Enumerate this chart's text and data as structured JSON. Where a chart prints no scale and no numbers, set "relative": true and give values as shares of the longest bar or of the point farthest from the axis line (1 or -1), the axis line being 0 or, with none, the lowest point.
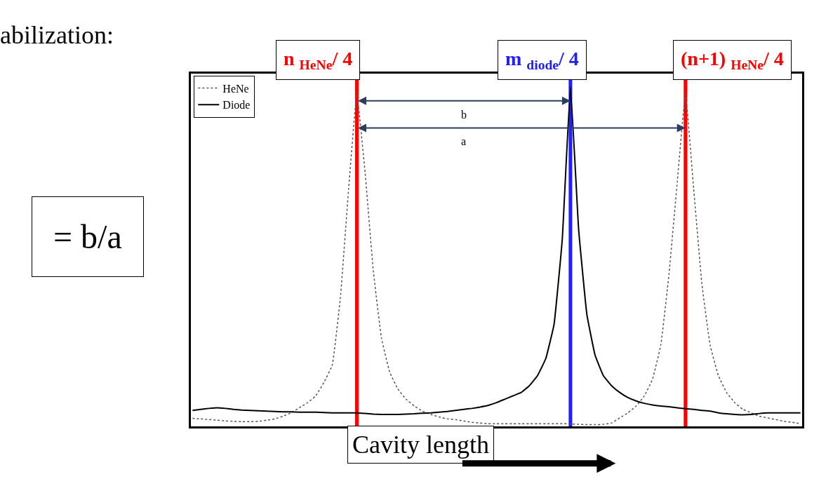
{
  "chart_data": {
    "type": "line",
    "relative": true,
    "xlabel": "Cavity length",
    "categories": [
      null,
      null,
      null,
      null,
      null,
      null,
      null,
      null,
      null,
      null,
      null,
      null,
      null,
      null,
      null,
      null,
      null,
      null,
      null,
      null,
      null,
      null,
      null,
      null,
      null,
      null,
      null,
      null,
      null,
      null,
      null,
      null,
      null,
      null,
      null,
      null,
      null,
      null,
      null,
      null,
      null,
      null,
      null,
      null,
      null,
      null,
      null,
      null,
      null,
      null,
      null,
      null,
      null,
      null,
      null,
      null,
      null,
      null,
      null,
      null,
      null,
      null,
      null,
      null,
      null,
      null,
      null,
      null,
      null,
      null,
      null,
      null,
      null,
      null,
      null
    ],
    "series": [
      {
        "name": "HeNe",
        "color": "#555555",
        "line_style": "dotted",
        "values": [
          0.024,
          0.022,
          0.02,
          0.018,
          0.016,
          0.015,
          0.014,
          0.014,
          0.015,
          0.018,
          0.022,
          0.03,
          0.04,
          0.055,
          0.07,
          0.09,
          0.13,
          0.18,
          0.38,
          0.7,
          0.98,
          0.75,
          0.46,
          0.26,
          0.16,
          0.11,
          0.08,
          0.06,
          0.045,
          0.035,
          0.028,
          0.022,
          0.02,
          0.016,
          0.012,
          0.01,
          0.008,
          0.008,
          0.008,
          0.008,
          0.008,
          0.008,
          0.008,
          0.008,
          0.008,
          0.008,
          0.007,
          0.006,
          0.005,
          0.005,
          0.006,
          0.01,
          0.025,
          0.04,
          0.06,
          0.09,
          0.14,
          0.24,
          0.45,
          0.72,
          0.98,
          0.7,
          0.42,
          0.24,
          0.15,
          0.1,
          0.07,
          0.05,
          0.04,
          0.03,
          0.025,
          0.02,
          0.015,
          0.012,
          0.008
        ]
      },
      {
        "name": "Diode",
        "color": "#000000",
        "line_style": "solid",
        "values": [
          0.047,
          0.05,
          0.053,
          0.055,
          0.053,
          0.05,
          0.048,
          0.047,
          0.046,
          0.045,
          0.044,
          0.043,
          0.043,
          0.042,
          0.042,
          0.042,
          0.041,
          0.04,
          0.04,
          0.04,
          0.04,
          0.038,
          0.036,
          0.035,
          0.035,
          0.035,
          0.036,
          0.037,
          0.039,
          0.04,
          0.042,
          0.044,
          0.047,
          0.05,
          0.053,
          0.057,
          0.062,
          0.07,
          0.08,
          0.09,
          0.1,
          0.12,
          0.15,
          0.2,
          0.3,
          0.55,
          1,
          0.58,
          0.33,
          0.21,
          0.15,
          0.12,
          0.1,
          0.085,
          0.075,
          0.068,
          0.063,
          0.06,
          0.058,
          0.055,
          0.052,
          0.05,
          0.047,
          0.045,
          0.04,
          0.037,
          0.035,
          0.034,
          0.035,
          0.038,
          0.04,
          0.04,
          0.04,
          0.04,
          0.04
        ]
      }
    ],
    "ref_lines": [
      {
        "axis": "x",
        "label": "n $_{HeNe}$/ 4",
        "color": "#ff0000"
      },
      {
        "axis": "x",
        "label": "m $_{diode}$/ 4",
        "color": "#2020ff"
      },
      {
        "axis": "x",
        "label": "(n+1) $_{HeNe}$/ 4",
        "color": "#ff0000"
      }
    ],
    "annotations": [
      "abilization:",
      "= b/a",
      "b",
      "a"
    ],
    "legend": "top left",
    "marker": "none"
  }
}
